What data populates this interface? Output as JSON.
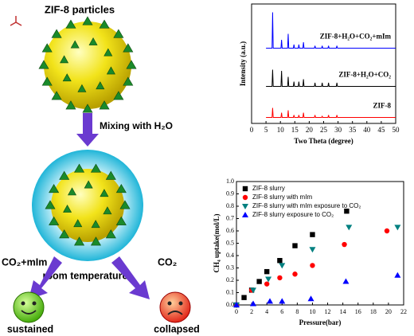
{
  "diagram": {
    "title": "ZIF-8 particles",
    "step": "Mixing with H₂O",
    "condition": "room temperature",
    "left_gas": "CO₂+mIm",
    "right_gas": "CO₂",
    "left_result": "sustained",
    "right_result": "collapsed"
  },
  "chart_data": [
    {
      "type": "line",
      "xlabel": "Two Theta (degree)",
      "ylabel": "Intensity (a.u.)",
      "xlim": [
        0,
        50
      ],
      "xticks": [
        0,
        5,
        10,
        15,
        20,
        25,
        30,
        35,
        40,
        45,
        50
      ],
      "ylim": [
        0,
        100
      ],
      "x": [
        5,
        7.1,
        7.3,
        7.5,
        10.2,
        10.4,
        10.6,
        12.5,
        12.7,
        12.9,
        14.5,
        14.7,
        14.9,
        16.2,
        16.4,
        16.6,
        17.8,
        18,
        18.2,
        21.8,
        22,
        22.2,
        24.3,
        24.5,
        24.7,
        26.5,
        26.7,
        26.9,
        29.4,
        29.6,
        29.8,
        50
      ],
      "series": [
        {
          "name": "ZIF-8+H₂O+CO₂+mIm",
          "color": "#0000ff",
          "values": [
            63,
            63,
            93,
            63,
            63,
            70,
            63,
            63,
            75,
            63,
            63,
            66,
            63,
            63,
            66,
            63,
            63,
            68,
            63,
            63,
            65,
            63,
            63,
            65,
            63,
            63,
            65,
            63,
            63,
            65,
            63,
            63
          ]
        },
        {
          "name": "ZIF-8+H₂O+CO₂",
          "color": "#000000",
          "values": [
            31,
            31,
            45,
            31,
            31,
            44,
            31,
            31,
            39,
            31,
            31,
            35,
            31,
            31,
            35,
            31,
            31,
            37,
            31,
            31,
            34,
            31,
            31,
            34,
            31,
            31,
            34,
            31,
            31,
            34,
            31,
            31
          ]
        },
        {
          "name": "ZIF-8",
          "color": "#ff0000",
          "values": [
            5,
            5,
            13,
            5,
            5,
            9,
            5,
            5,
            11,
            5,
            5,
            7,
            5,
            5,
            7,
            5,
            5,
            9,
            5,
            5,
            7,
            5,
            5,
            6,
            5,
            5,
            7,
            5,
            5,
            7,
            5,
            5
          ]
        }
      ]
    },
    {
      "type": "scatter",
      "xlabel": "Pressure(bar)",
      "ylabel": "CH₄ uptake(mol/L)",
      "xlim": [
        0,
        22
      ],
      "xticks": [
        0,
        2,
        4,
        6,
        8,
        10,
        12,
        14,
        16,
        18,
        20,
        22
      ],
      "ylim": [
        0,
        1
      ],
      "yticks": [
        {
          "value": 0,
          "label": "0.0"
        },
        0.1,
        0.2,
        0.3,
        0.4,
        0.5,
        0.6,
        0.7,
        0.8,
        0.9,
        {
          "value": 1,
          "label": "1.0"
        }
      ],
      "legend": "top-left",
      "series": [
        {
          "name": "ZIF-8 slurry",
          "color": "#000000",
          "marker": "square",
          "x": [
            0,
            1,
            2,
            3,
            4,
            5.7,
            7.7,
            10,
            14.5
          ],
          "values": [
            0,
            0.06,
            0.12,
            0.19,
            0.27,
            0.36,
            0.48,
            0.57,
            0.76
          ]
        },
        {
          "name": "ZIF-8 slurry with mIm",
          "color": "#ff0000",
          "marker": "circle",
          "x": [
            0,
            2,
            4,
            5.7,
            7.7,
            10,
            14.2,
            19.8
          ],
          "values": [
            0,
            0.12,
            0.17,
            0.22,
            0.25,
            0.32,
            0.49,
            0.6
          ]
        },
        {
          "name": "ZIF-8 slurry with mIm exposure to CO₂",
          "color": "#008080",
          "marker": "triangle-down",
          "x": [
            0,
            2.2,
            4.2,
            6,
            10,
            14.8,
            21.2
          ],
          "values": [
            0,
            0.12,
            0.21,
            0.32,
            0.45,
            0.63,
            0.63
          ]
        },
        {
          "name": "ZIF-8 slurry exposure to CO₂",
          "color": "#0000ff",
          "marker": "triangle-up",
          "x": [
            0,
            2.2,
            4.4,
            6,
            9.8,
            14.4,
            21.2
          ],
          "values": [
            0,
            0.01,
            0.03,
            0.03,
            0.05,
            0.19,
            0.24
          ]
        }
      ]
    }
  ]
}
